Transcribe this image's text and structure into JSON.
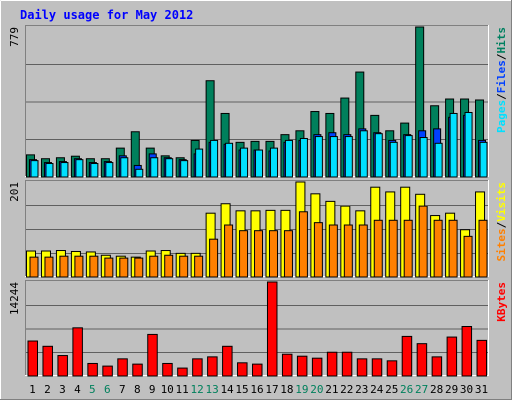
{
  "chart_data": {
    "type": "bar",
    "title": "Daily usage for May 2012",
    "categories": [
      "1",
      "2",
      "3",
      "4",
      "5",
      "6",
      "7",
      "8",
      "9",
      "10",
      "11",
      "12",
      "13",
      "14",
      "15",
      "16",
      "17",
      "18",
      "19",
      "20",
      "21",
      "22",
      "23",
      "24",
      "25",
      "26",
      "27",
      "28",
      "29",
      "30",
      "31"
    ],
    "weekend_days": [
      "5",
      "6",
      "12",
      "13",
      "19",
      "20",
      "26",
      "27"
    ],
    "panels": [
      {
        "id": "hits-files-pages",
        "ymax_label": "779",
        "ymax": 779,
        "label_parts": [
          "Pages",
          "/",
          "Files",
          "/",
          "Hits"
        ],
        "label_colors": [
          "#00e0ff",
          "#000000",
          "#0040ff",
          "#000000",
          "#008060"
        ],
        "series": [
          {
            "name": "Hits",
            "color": "#00805c",
            "values": [
              115,
              95,
              100,
              108,
              95,
              95,
              150,
              235,
              150,
              110,
              100,
              190,
              500,
              330,
              180,
              185,
              185,
              220,
              240,
              340,
              330,
              410,
              545,
              320,
              240,
              280,
              779,
              370,
              405,
              405,
              400
            ]
          },
          {
            "name": "Files",
            "color": "#0040ff",
            "values": [
              90,
              75,
              80,
              95,
              75,
              80,
              110,
              60,
              120,
              100,
              90,
              120,
              180,
              170,
              140,
              140,
              135,
              180,
              190,
              220,
              230,
              220,
              250,
              230,
              190,
              220,
              240,
              250,
              310,
              320,
              190
            ]
          },
          {
            "name": "Pages",
            "color": "#00e0ff",
            "values": [
              85,
              70,
              75,
              90,
              70,
              75,
              100,
              40,
              100,
              95,
              85,
              145,
              190,
              175,
              150,
              140,
              150,
              190,
              200,
              210,
              210,
              210,
              240,
              225,
              180,
              215,
              205,
              175,
              330,
              335,
              180
            ]
          }
        ]
      },
      {
        "id": "visits-sites",
        "ymax_label": "201",
        "ymax": 201,
        "label_parts": [
          "Sites",
          "/",
          "Visits"
        ],
        "label_colors": [
          "#ff8000",
          "#000000",
          "#ffff00"
        ],
        "series": [
          {
            "name": "Visits",
            "color": "#ffff00",
            "values": [
              55,
              55,
              56,
              54,
              53,
              46,
              44,
              42,
              55,
              56,
              50,
              50,
              135,
              155,
              140,
              140,
              141,
              141,
              201,
              176,
              160,
              150,
              140,
              190,
              180,
              190,
              175,
              130,
              135,
              100,
              180
            ]
          },
          {
            "name": "Sites",
            "color": "#ff8000",
            "values": [
              42,
              42,
              44,
              44,
              44,
              40,
              40,
              40,
              44,
              46,
              44,
              44,
              80,
              110,
              98,
              98,
              98,
              98,
              138,
              115,
              110,
              110,
              110,
              120,
              120,
              120,
              150,
              120,
              120,
              86,
              120
            ]
          }
        ]
      },
      {
        "id": "kbytes",
        "ymax_label": "14244",
        "ymax": 14244,
        "label_parts": [
          "KBytes"
        ],
        "label_colors": [
          "#ff0000"
        ],
        "series": [
          {
            "name": "KBytes",
            "color": "#ff0000",
            "values": [
              5300,
              4500,
              3100,
              7300,
              1900,
              1500,
              2600,
              1800,
              6300,
              1900,
              1200,
              2600,
              2900,
              4500,
              2000,
              1800,
              14244,
              3300,
              3000,
              2700,
              3600,
              3600,
              2600,
              2600,
              2300,
              6000,
              4900,
              2900,
              5900,
              7500,
              5400
            ]
          }
        ]
      }
    ]
  }
}
